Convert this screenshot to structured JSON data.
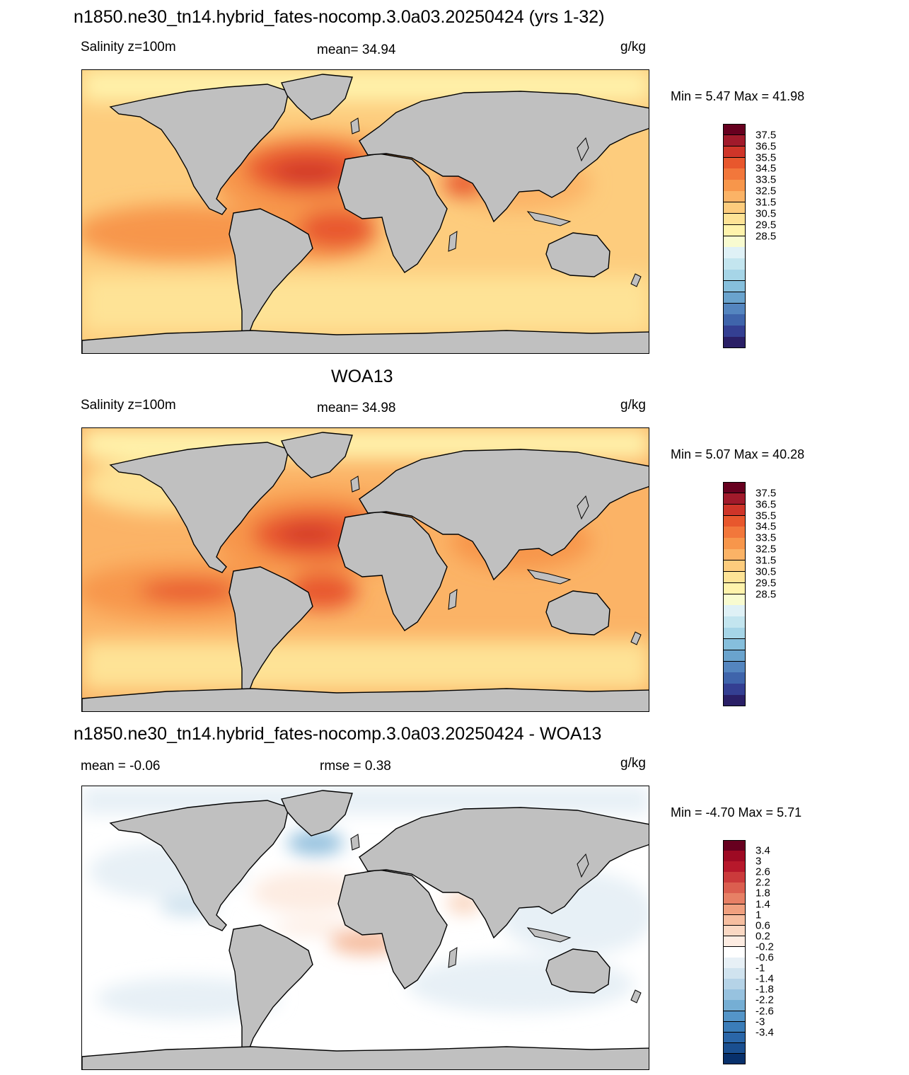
{
  "panels": [
    {
      "id": "model",
      "title": "n1850.ne30_tn14.hybrid_fates-nocomp.3.0a03.20250424 (yrs 1-32)",
      "left_label": "Salinity z=100m",
      "center_label": "mean=  34.94",
      "units": "g/kg",
      "minmax": "Min =   5.47 Max =  41.98",
      "mean": 34.94,
      "min": 5.47,
      "max": 41.98
    },
    {
      "id": "obs",
      "title": "WOA13",
      "left_label": "Salinity z=100m",
      "center_label": "mean=  34.98",
      "units": "g/kg",
      "minmax": "Min =   5.07 Max =  40.28",
      "mean": 34.98,
      "min": 5.07,
      "max": 40.28
    },
    {
      "id": "diff",
      "title": "n1850.ne30_tn14.hybrid_fates-nocomp.3.0a03.20250424 - WOA13",
      "left_label": "mean =  -0.06",
      "center_label": "rmse =   0.38",
      "units": "g/kg",
      "minmax": "Min =  -4.70 Max =   5.71",
      "mean": -0.06,
      "rmse": 0.38,
      "min": -4.7,
      "max": 5.71
    }
  ],
  "colorbars": {
    "salinity": {
      "labels": [
        "37.5",
        "36.5",
        "35.5",
        "34.5",
        "33.5",
        "32.5",
        "31.5",
        "30.5",
        "29.5",
        "28.5"
      ],
      "colors": [
        "#67001f",
        "#a11a2b",
        "#cf3529",
        "#e8572d",
        "#f2773b",
        "#f7964b",
        "#fbb366",
        "#fdcc7d",
        "#fee396",
        "#fff3ac",
        "#f8fbd0",
        "#dff1f6",
        "#c3e5ef",
        "#a6d5e7",
        "#86bfdc",
        "#6aa3cd",
        "#5485bf",
        "#3f64ab",
        "#343f92",
        "#2a1f66"
      ]
    },
    "difference": {
      "labels": [
        "3.4",
        "3",
        "2.6",
        "2.2",
        "1.8",
        "1.4",
        "1",
        "0.6",
        "0.2",
        "-0.2",
        "-0.6",
        "-1",
        "-1.4",
        "-1.8",
        "-2.2",
        "-2.6",
        "-3",
        "-3.4"
      ],
      "colors": [
        "#67001f",
        "#9e0a23",
        "#b7182b",
        "#cb3a3b",
        "#db5e4f",
        "#e78065",
        "#f0a07f",
        "#f6bea0",
        "#fad8c3",
        "#fdece2",
        "#ffffff",
        "#e7f0f6",
        "#d0e3ef",
        "#b5d3e7",
        "#97c2df",
        "#75aed4",
        "#5495c8",
        "#3b7db9",
        "#2a66a8",
        "#1a4f90",
        "#08306b"
      ]
    }
  }
}
